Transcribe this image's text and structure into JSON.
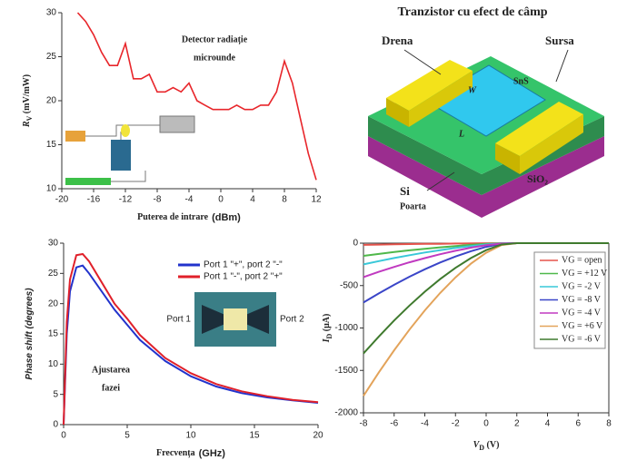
{
  "chart_data": [
    {
      "type": "line",
      "annotation": [
        "Detector radiație",
        "microunde"
      ],
      "x_label": "Puterea de intrare",
      "x_label_unit": "(dBm)",
      "y_label": {
        "main": "R",
        "sub": "V",
        "unit": " (mV/mW)"
      },
      "x": [
        -18,
        -17,
        -16,
        -15,
        -14,
        -13,
        -12,
        -11,
        -10,
        -9,
        -8,
        -7,
        -6,
        -5,
        -4,
        -3,
        -2,
        -1,
        0,
        1,
        2,
        3,
        4,
        5,
        6,
        7,
        8,
        9,
        10,
        11,
        12
      ],
      "series": [
        {
          "name": null,
          "color": "#e8262b",
          "values": [
            30,
            29,
            27.5,
            25.5,
            24,
            24,
            26.5,
            22.5,
            22.5,
            23,
            21,
            21,
            21.5,
            21,
            22,
            20,
            19.5,
            19,
            19,
            19,
            19.5,
            19,
            19,
            19.5,
            19.5,
            21,
            24.5,
            22,
            18,
            14,
            11
          ]
        }
      ],
      "xlim": [
        -20,
        12
      ],
      "xticks": [
        -20,
        -16,
        -12,
        -8,
        -4,
        0,
        4,
        8,
        12
      ],
      "ylim": [
        10,
        30
      ],
      "yticks": [
        10,
        15,
        20,
        25,
        30
      ]
    },
    {
      "type": "line",
      "annotation": [
        "Ajustarea",
        "fazei"
      ],
      "inset_labels": [
        "Port 1",
        "Port 2"
      ],
      "x_label": "Frecvența",
      "x_label_unit": "(GHz)",
      "y_label": {
        "main": "Phase shift (degrees)",
        "sub": null,
        "unit": null
      },
      "x": [
        0,
        0.25,
        0.5,
        1,
        1.5,
        2,
        3,
        4,
        5,
        6,
        8,
        10,
        12,
        14,
        16,
        18,
        20
      ],
      "series": [
        {
          "name": "Port 1 \"+\", port 2 \"-\"",
          "color": "#2233cc",
          "values": [
            0,
            15,
            22,
            26,
            26.3,
            25,
            22,
            19,
            16.5,
            14,
            10.5,
            8,
            6.3,
            5.2,
            4.5,
            4,
            3.6
          ]
        },
        {
          "name": "Port 1 \"-\", port 2 \"+\"",
          "color": "#e0202a",
          "values": [
            0,
            17,
            24,
            28,
            28.2,
            27,
            23.5,
            20,
            17.5,
            14.8,
            11,
            8.5,
            6.7,
            5.5,
            4.7,
            4.1,
            3.7
          ]
        }
      ],
      "xlim": [
        0,
        20
      ],
      "xticks": [
        0,
        5,
        10,
        15,
        20
      ],
      "ylim": [
        0,
        30
      ],
      "yticks": [
        0,
        5,
        10,
        15,
        20,
        25,
        30
      ],
      "legend": "upper-right"
    },
    {
      "type": "line",
      "x_label": {
        "main": "V",
        "sub": "D",
        "unit": " (V)"
      },
      "y_label": {
        "main": "I",
        "sub": "D",
        "unit": " (μA)"
      },
      "x": [
        -8,
        -7,
        -6,
        -5,
        -4,
        -3,
        -2,
        -1,
        0,
        1,
        2,
        4,
        6,
        8
      ],
      "series": [
        {
          "name": "VG = open",
          "color": "#e5534b",
          "values": [
            -20,
            -17,
            -14,
            -11,
            -9,
            -7,
            -4,
            -3,
            -1,
            0,
            0,
            0,
            0,
            0
          ]
        },
        {
          "name": "VG = +12 V",
          "color": "#4fb84a",
          "values": [
            -150,
            -127,
            -105,
            -85,
            -66,
            -49,
            -34,
            -20,
            -9,
            -2,
            0,
            0,
            0,
            0
          ]
        },
        {
          "name": "VG = -2 V",
          "color": "#39c8d8",
          "values": [
            -250,
            -212,
            -175,
            -142,
            -110,
            -82,
            -56,
            -34,
            -16,
            -3,
            0,
            0,
            0,
            0
          ]
        },
        {
          "name": "VG = -8 V",
          "color": "#3a45c8",
          "values": [
            -700,
            -592,
            -491,
            -396,
            -308,
            -228,
            -157,
            -95,
            -44,
            -8,
            0,
            0,
            0,
            0
          ]
        },
        {
          "name": "VG = -4 V",
          "color": "#c03ac0",
          "values": [
            -400,
            -338,
            -280,
            -226,
            -176,
            -130,
            -90,
            -54,
            -25,
            -5,
            0,
            0,
            0,
            0
          ]
        },
        {
          "name": "VG = +6 V",
          "color": "#e3a35a",
          "values": [
            -1800,
            -1523,
            -1262,
            -1019,
            -792,
            -587,
            -403,
            -243,
            -113,
            -22,
            0,
            0,
            0,
            0
          ]
        },
        {
          "name": "VG = -6 V",
          "color": "#3f7a2e",
          "values": [
            -1300,
            -1100,
            -911,
            -736,
            -572,
            -424,
            -291,
            -176,
            -82,
            -16,
            0,
            0,
            0,
            0
          ]
        }
      ],
      "xlim": [
        -8,
        8
      ],
      "xticks": [
        -8,
        -6,
        -4,
        -2,
        0,
        2,
        4,
        6,
        8
      ],
      "ylim": [
        -2000,
        0
      ],
      "yticks": [
        -2000,
        -1500,
        -1000,
        -500,
        0
      ],
      "legend": "upper-right"
    }
  ],
  "diagram": {
    "title": "Tranzistor cu efect de câmp",
    "drain": "Drena",
    "source": "Sursa",
    "channel": "SnS",
    "width": "W",
    "length": "L",
    "oxide": "SiO₂",
    "substrate": "Si",
    "gate": "Poarta"
  }
}
